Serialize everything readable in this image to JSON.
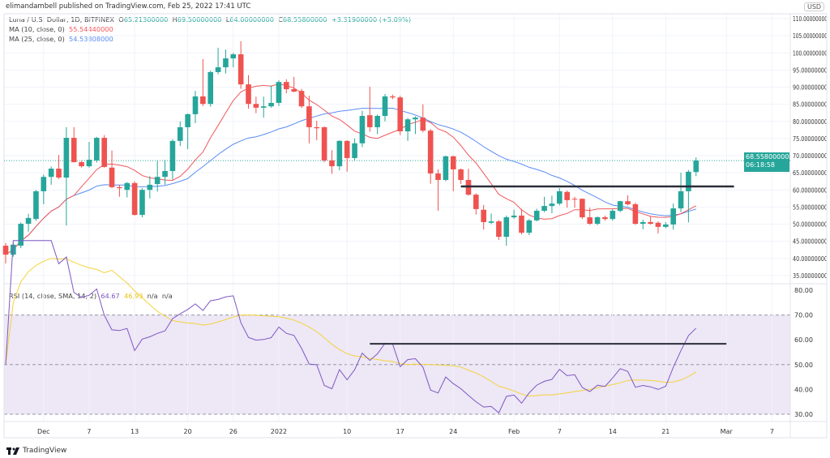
{
  "header": {
    "published": "elimandambell published on TradingView.com, Feb 25, 2022 17:41 UTC"
  },
  "legend": {
    "symbol": "Luna / U.S. Dollar, 1D, BITFINEX",
    "o_label": "O",
    "o": "65.21300000",
    "h_label": "H",
    "h": "69.50000000",
    "l_label": "L",
    "l": "64.00000000",
    "c_label": "C",
    "c": "68.55800000",
    "change": "+3.31900000 (+5.09%)",
    "ma10_label": "MA (10, close, 0)",
    "ma10_value": "55.54440000",
    "ma25_label": "MA (25, close, 0)",
    "ma25_value": "54.53808000",
    "rsi_label": "RSI (14, close, SMA, 14, 2)",
    "rsi_value": "64.67",
    "rsi_ma_value": "46.93",
    "na1": "n/a",
    "na2": "n/a"
  },
  "price_axis": {
    "currency": "USD",
    "labels": [
      "110.00000000",
      "105.00000000",
      "100.00000000",
      "95.00000000",
      "90.00000000",
      "85.00000000",
      "80.00000000",
      "75.00000000",
      "70.00000000",
      "65.00000000",
      "60.00000000",
      "55.00000000",
      "50.00000000",
      "45.00000000",
      "40.00000000",
      "35.00000000"
    ],
    "values": [
      110,
      105,
      100,
      95,
      90,
      85,
      80,
      75,
      70,
      65,
      60,
      55,
      50,
      45,
      40,
      35
    ],
    "last_price": "68.55800000",
    "countdown": "06:18:58"
  },
  "rsi_axis": {
    "labels": [
      "80.00",
      "70.00",
      "60.00",
      "50.00",
      "40.00",
      "30.00"
    ],
    "values": [
      80,
      70,
      60,
      50,
      40,
      30
    ]
  },
  "time_axis": {
    "ticks": [
      {
        "label": "Dec",
        "date": "2021-12-01"
      },
      {
        "label": "7",
        "date": "2021-12-07"
      },
      {
        "label": "13",
        "date": "2021-12-13"
      },
      {
        "label": "20",
        "date": "2021-12-20"
      },
      {
        "label": "26",
        "date": "2021-12-26"
      },
      {
        "label": "2022",
        "date": "2022-01-01"
      },
      {
        "label": "10",
        "date": "2022-01-10"
      },
      {
        "label": "17",
        "date": "2022-01-17"
      },
      {
        "label": "24",
        "date": "2022-01-24"
      },
      {
        "label": "Feb",
        "date": "2022-02-01"
      },
      {
        "label": "7",
        "date": "2022-02-07"
      },
      {
        "label": "14",
        "date": "2022-02-14"
      },
      {
        "label": "21",
        "date": "2022-02-21"
      },
      {
        "label": "Mar",
        "date": "2022-03-01"
      },
      {
        "label": "7",
        "date": "2022-03-07"
      }
    ]
  },
  "colors": {
    "up": "#26a69a",
    "down": "#ef5350",
    "ma10": "#f0585c",
    "ma25": "#5b8cf5",
    "rsi": "#7e57c2",
    "rsi_ma": "#f5d33a",
    "band": "#ede7f6",
    "drawn_line": "#2a2e39"
  },
  "chart_data": {
    "type": "candlestick",
    "first_date": "2021-11-26",
    "ohlc": [
      [
        43.7,
        44.5,
        38.5,
        41.1
      ],
      [
        41.1,
        44.5,
        40.5,
        44.0
      ],
      [
        43.7,
        50.5,
        43.0,
        50.1
      ],
      [
        50.1,
        53.0,
        47.8,
        51.8
      ],
      [
        51.5,
        60.0,
        51.0,
        59.6
      ],
      [
        59.6,
        64.5,
        55.8,
        63.8
      ],
      [
        63.8,
        66.8,
        61.5,
        66.2
      ],
      [
        66.2,
        70.2,
        63.2,
        63.6
      ],
      [
        63.6,
        78.3,
        49.6,
        75.2
      ],
      [
        75.2,
        78.3,
        68.0,
        68.1
      ],
      [
        68.1,
        68.5,
        66.5,
        66.9
      ],
      [
        66.9,
        74.0,
        66.5,
        68.8
      ],
      [
        68.6,
        75.5,
        68.0,
        75.2
      ],
      [
        75.2,
        76.0,
        66.5,
        66.7
      ],
      [
        66.5,
        71.5,
        60.5,
        60.8
      ],
      [
        60.8,
        61.5,
        58.0,
        60.5
      ],
      [
        60.0,
        62.3,
        57.8,
        62.0
      ],
      [
        62.0,
        62.5,
        52.5,
        52.7
      ],
      [
        52.7,
        60.5,
        52.0,
        60.0
      ],
      [
        60.0,
        64.0,
        57.5,
        61.5
      ],
      [
        61.7,
        68.5,
        59.5,
        63.8
      ],
      [
        63.8,
        68.8,
        61.5,
        65.5
      ],
      [
        65.5,
        74.8,
        63.0,
        74.3
      ],
      [
        74.3,
        80.0,
        72.8,
        78.3
      ],
      [
        78.3,
        82.3,
        71.9,
        82.1
      ],
      [
        82.1,
        88.9,
        79.5,
        87.3
      ],
      [
        87.3,
        98.2,
        84.5,
        85.1
      ],
      [
        85.1,
        94.8,
        84.3,
        94.4
      ],
      [
        94.4,
        101.5,
        93.8,
        95.8
      ],
      [
        95.8,
        101.0,
        94.0,
        98.4
      ],
      [
        98.4,
        100.0,
        95.8,
        99.6
      ],
      [
        99.6,
        103.4,
        89.5,
        90.8
      ],
      [
        90.8,
        93.5,
        83.7,
        85.1
      ],
      [
        85.1,
        87.2,
        82.4,
        84.0
      ],
      [
        84.0,
        87.2,
        81.1,
        84.4
      ],
      [
        84.4,
        90.5,
        84.0,
        85.4
      ],
      [
        85.4,
        92.0,
        84.5,
        91.5
      ],
      [
        91.5,
        92.3,
        88.2,
        89.4
      ],
      [
        89.4,
        93.0,
        88.5,
        88.7
      ],
      [
        88.9,
        89.5,
        83.9,
        84.4
      ],
      [
        84.4,
        87.5,
        73.6,
        78.3
      ],
      [
        78.3,
        80.2,
        74.5,
        78.0
      ],
      [
        78.3,
        78.5,
        68.1,
        68.6
      ],
      [
        68.6,
        71.6,
        64.7,
        66.9
      ],
      [
        66.9,
        74.5,
        65.7,
        74.3
      ],
      [
        74.3,
        74.5,
        65.3,
        69.3
      ],
      [
        69.3,
        75.0,
        68.7,
        73.6
      ],
      [
        73.6,
        83.1,
        72.5,
        81.6
      ],
      [
        81.8,
        90.1,
        77.0,
        78.3
      ],
      [
        78.3,
        82.0,
        76.3,
        81.6
      ],
      [
        81.6,
        88.0,
        80.0,
        87.3
      ],
      [
        87.3,
        87.8,
        86.5,
        87.0
      ],
      [
        87.0,
        87.5,
        76.0,
        77.1
      ],
      [
        77.1,
        81.0,
        74.3,
        80.6
      ],
      [
        80.6,
        81.5,
        76.3,
        81.1
      ],
      [
        81.1,
        85.0,
        76.8,
        77.3
      ],
      [
        77.3,
        77.8,
        61.8,
        64.8
      ],
      [
        64.8,
        66.0,
        53.9,
        62.9
      ],
      [
        62.9,
        70.0,
        62.5,
        69.8
      ],
      [
        69.8,
        70.0,
        59.6,
        66.0
      ],
      [
        66.0,
        66.2,
        61.7,
        62.9
      ],
      [
        62.9,
        66.2,
        58.3,
        58.6
      ],
      [
        58.6,
        59.0,
        52.8,
        54.4
      ],
      [
        54.2,
        55.6,
        48.4,
        50.6
      ],
      [
        50.4,
        53.1,
        50.0,
        50.8
      ],
      [
        50.8,
        51.2,
        45.4,
        46.3
      ],
      [
        46.3,
        52.5,
        43.7,
        52.0
      ],
      [
        52.0,
        54.2,
        51.5,
        52.5
      ],
      [
        52.5,
        54.5,
        47.0,
        47.5
      ],
      [
        47.5,
        51.5,
        46.8,
        51.1
      ],
      [
        51.1,
        54.5,
        50.8,
        53.9
      ],
      [
        53.9,
        58.0,
        53.5,
        55.3
      ],
      [
        55.3,
        58.3,
        53.2,
        56.0
      ],
      [
        56.0,
        60.5,
        55.5,
        59.6
      ],
      [
        59.4,
        59.8,
        54.8,
        57.0
      ],
      [
        57.4,
        58.0,
        54.8,
        57.3
      ],
      [
        57.4,
        57.5,
        51.5,
        52.0
      ],
      [
        52.0,
        54.8,
        49.8,
        50.1
      ],
      [
        50.1,
        52.3,
        49.7,
        52.0
      ],
      [
        52.0,
        52.5,
        51.0,
        51.5
      ],
      [
        51.5,
        54.4,
        51.0,
        53.9
      ],
      [
        53.9,
        56.8,
        53.5,
        56.7
      ],
      [
        56.7,
        58.4,
        55.5,
        55.8
      ],
      [
        55.8,
        56.3,
        49.8,
        50.1
      ],
      [
        50.1,
        51.3,
        48.5,
        50.6
      ],
      [
        50.6,
        52.2,
        49.9,
        50.1
      ],
      [
        50.4,
        50.8,
        47.3,
        49.2
      ],
      [
        49.2,
        50.6,
        48.8,
        49.9
      ],
      [
        49.9,
        56.0,
        48.4,
        54.6
      ],
      [
        54.6,
        65.0,
        53.5,
        59.6
      ],
      [
        59.6,
        65.8,
        50.5,
        65.3
      ],
      [
        65.213,
        69.5,
        64.0,
        68.558
      ]
    ],
    "price_range": [
      33,
      111
    ],
    "rsi_range": [
      27,
      82
    ],
    "rsi_band": [
      30,
      70
    ],
    "resistance_price": {
      "from": "2022-01-25",
      "to": "2022-03-02",
      "value": 61.0
    },
    "resistance_rsi": {
      "from": "2022-01-13",
      "to": "2022-03-01",
      "value": 58.4
    }
  },
  "footer": {
    "brand": "TradingView"
  }
}
